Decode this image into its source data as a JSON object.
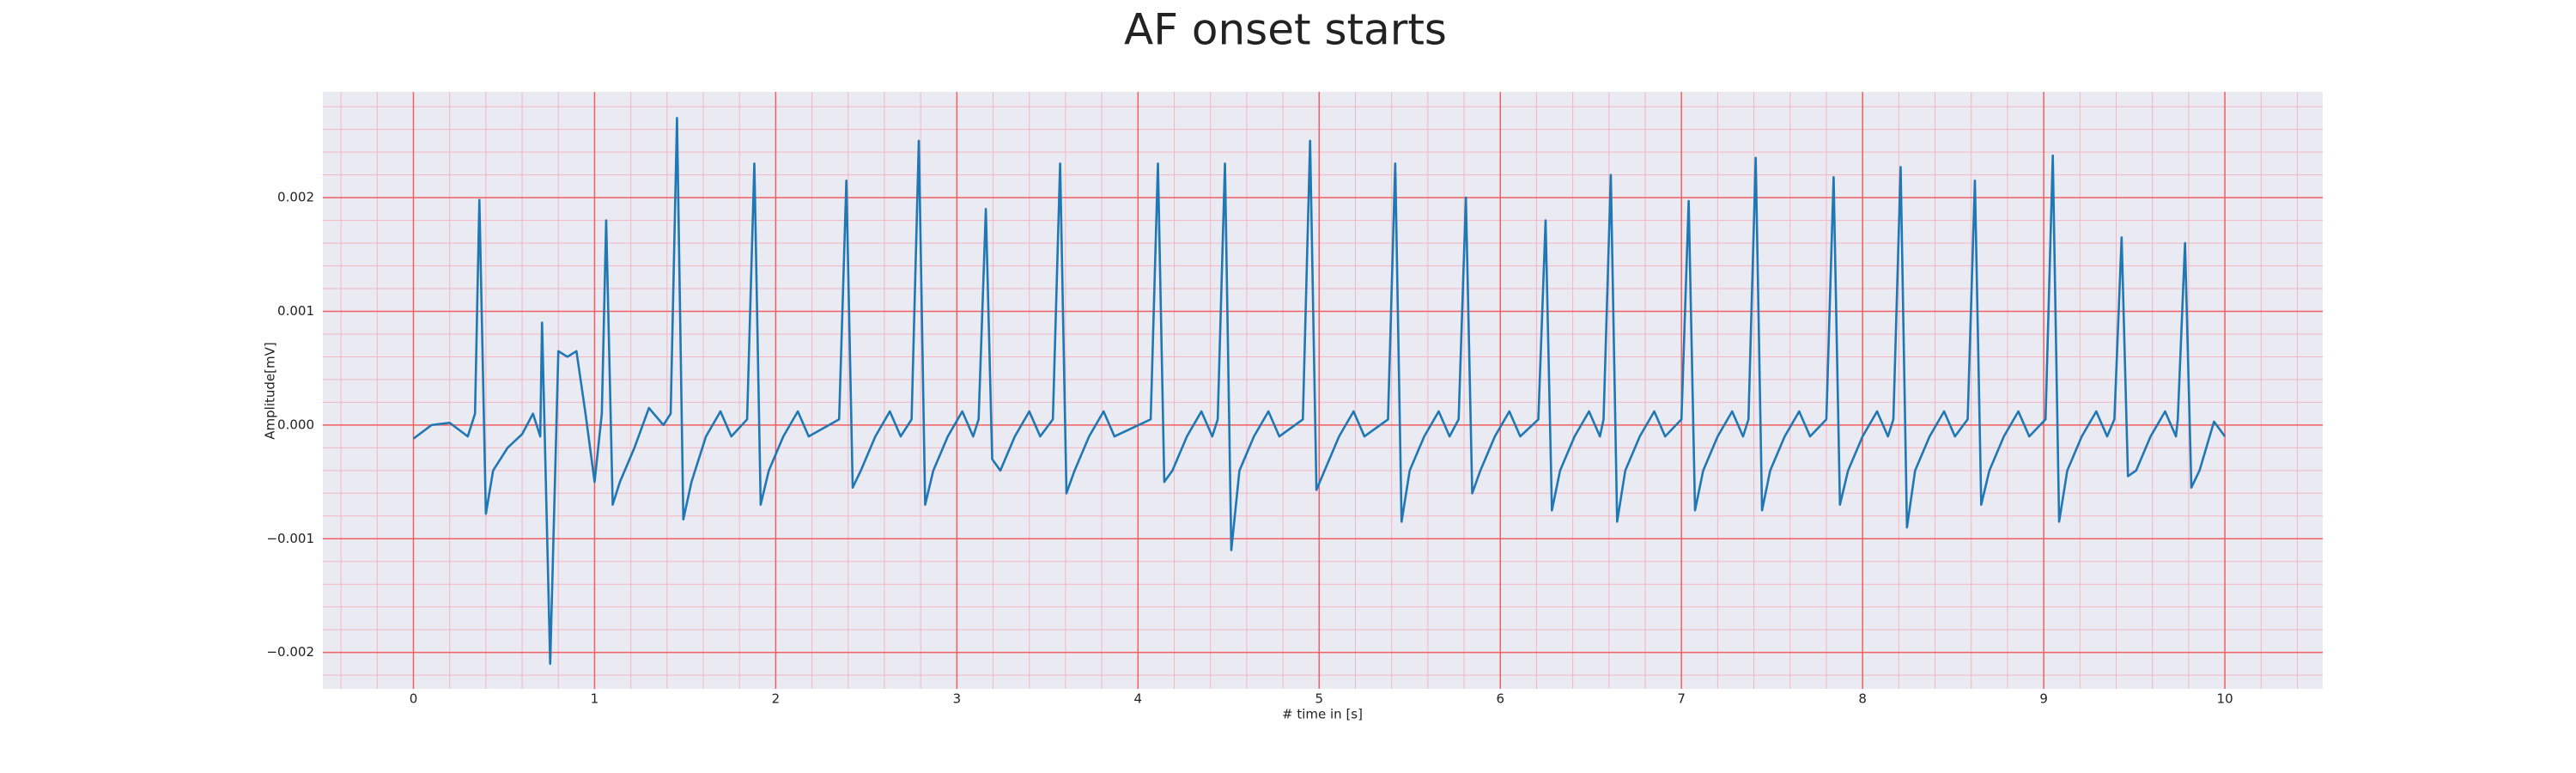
{
  "chart_data": {
    "type": "line",
    "title": "AF onset starts",
    "xlabel": "# time in [s]",
    "ylabel": "Amplitude[mV]",
    "color": "#1f77b4",
    "grid": true,
    "minor_grid": true,
    "xlim": [
      -0.5,
      10.54
    ],
    "ylim": [
      -0.00232,
      0.00293
    ],
    "xticks": [
      0,
      1,
      2,
      3,
      4,
      5,
      6,
      7,
      8,
      9,
      10
    ],
    "yticks": [
      {
        "value": -0.002,
        "label": "−0.002"
      },
      {
        "value": -0.001,
        "label": "−0.001"
      },
      {
        "value": 0,
        "label": "0.000"
      },
      0.001,
      0.002
    ],
    "x": [
      0,
      0.1,
      0.2,
      0.3,
      0.34,
      0.364,
      0.4,
      0.44,
      0.52,
      0.6,
      0.66,
      0.7,
      0.71,
      0.755,
      0.8,
      0.85,
      0.9,
      0.95,
      1.0,
      1.04,
      1.064,
      1.1,
      1.14,
      1.22,
      1.3,
      1.38,
      1.42,
      1.455,
      1.49,
      1.535,
      1.615,
      1.695,
      1.755,
      1.842,
      1.882,
      1.917,
      1.962,
      2.042,
      2.122,
      2.182,
      2.35,
      2.39,
      2.425,
      2.47,
      2.55,
      2.63,
      2.69,
      2.75,
      2.79,
      2.825,
      2.87,
      2.95,
      3.03,
      3.09,
      3.12,
      3.16,
      3.195,
      3.24,
      3.32,
      3.4,
      3.46,
      3.53,
      3.57,
      3.605,
      3.65,
      3.73,
      3.81,
      3.87,
      4.07,
      4.11,
      4.145,
      4.19,
      4.27,
      4.35,
      4.41,
      4.44,
      4.48,
      4.515,
      4.56,
      4.64,
      4.72,
      4.78,
      4.91,
      4.95,
      4.985,
      5.03,
      5.11,
      5.19,
      5.25,
      5.38,
      5.42,
      5.455,
      5.5,
      5.58,
      5.66,
      5.72,
      5.77,
      5.81,
      5.845,
      5.89,
      5.97,
      6.05,
      6.11,
      6.21,
      6.25,
      6.285,
      6.33,
      6.41,
      6.49,
      6.55,
      6.57,
      6.61,
      6.645,
      6.69,
      6.77,
      6.85,
      6.91,
      7.0,
      7.04,
      7.075,
      7.12,
      7.2,
      7.28,
      7.34,
      7.37,
      7.41,
      7.445,
      7.49,
      7.57,
      7.65,
      7.71,
      7.8,
      7.84,
      7.875,
      7.92,
      8.0,
      8.08,
      8.14,
      8.17,
      8.21,
      8.245,
      8.29,
      8.37,
      8.45,
      8.51,
      8.58,
      8.62,
      8.655,
      8.7,
      8.78,
      8.86,
      8.92,
      9.01,
      9.05,
      9.085,
      9.13,
      9.21,
      9.29,
      9.35,
      9.39,
      9.43,
      9.465,
      9.51,
      9.59,
      9.67,
      9.73,
      9.74,
      9.78,
      9.815,
      9.86,
      9.94,
      10.0
    ],
    "values": [
      -0.00012,
      0,
      2e-05,
      -0.0001,
      0.0001,
      0.00198,
      -0.00078,
      -0.0004,
      -0.0002,
      -8e-05,
      0.0001,
      -0.0001,
      0.0009,
      -0.0021,
      0.00065,
      0.0006,
      0.00065,
      0.0001,
      -0.0005,
      0.0001,
      0.0018,
      -0.0007,
      -0.0005,
      -0.0002,
      0.00015,
      0,
      0.0001,
      0.0027,
      -0.00083,
      -0.0005,
      -0.0001,
      0.00012,
      -0.0001,
      5e-05,
      0.0023,
      -0.0007,
      -0.0004,
      -0.0001,
      0.00012,
      -0.0001,
      5e-05,
      0.00215,
      -0.00055,
      -0.0004,
      -0.0001,
      0.00012,
      -0.0001,
      5e-05,
      0.0025,
      -0.0007,
      -0.0004,
      -0.0001,
      0.00012,
      -0.0001,
      5e-05,
      0.0019,
      -0.0003,
      -0.0004,
      -0.0001,
      0.00012,
      -0.0001,
      5e-05,
      0.0023,
      -0.0006,
      -0.0004,
      -0.0001,
      0.00012,
      -0.0001,
      5e-05,
      0.0023,
      -0.0005,
      -0.0004,
      -0.0001,
      0.00012,
      -0.0001,
      5e-05,
      0.0023,
      -0.0011,
      -0.0004,
      -0.0001,
      0.00012,
      -0.0001,
      5e-05,
      0.0025,
      -0.00057,
      -0.0004,
      -0.0001,
      0.00012,
      -0.0001,
      5e-05,
      0.0023,
      -0.00085,
      -0.0004,
      -0.0001,
      0.00012,
      -0.0001,
      5e-05,
      0.002,
      -0.0006,
      -0.0004,
      -0.0001,
      0.00012,
      -0.0001,
      5e-05,
      0.0018,
      -0.00075,
      -0.0004,
      -0.0001,
      0.00012,
      -0.0001,
      5e-05,
      0.0022,
      -0.00085,
      -0.0004,
      -0.0001,
      0.00012,
      -0.0001,
      5e-05,
      0.00197,
      -0.00075,
      -0.0004,
      -0.0001,
      0.00012,
      -0.0001,
      5e-05,
      0.00235,
      -0.00075,
      -0.0004,
      -0.0001,
      0.00012,
      -0.0001,
      5e-05,
      0.00218,
      -0.0007,
      -0.0004,
      -0.0001,
      0.00012,
      -0.0001,
      5e-05,
      0.00227,
      -0.0009,
      -0.0004,
      -0.0001,
      0.00012,
      -0.0001,
      5e-05,
      0.00215,
      -0.0007,
      -0.0004,
      -0.0001,
      0.00012,
      -0.0001,
      5e-05,
      0.00237,
      -0.00085,
      -0.0004,
      -0.0001,
      0.00012,
      -0.0001,
      5e-05,
      0.00165,
      -0.00045,
      -0.0004,
      -0.0001,
      0.00012,
      -0.0001,
      5e-05,
      0.0016,
      -0.00055,
      -0.0004,
      3e-05,
      -0.0001
    ]
  }
}
